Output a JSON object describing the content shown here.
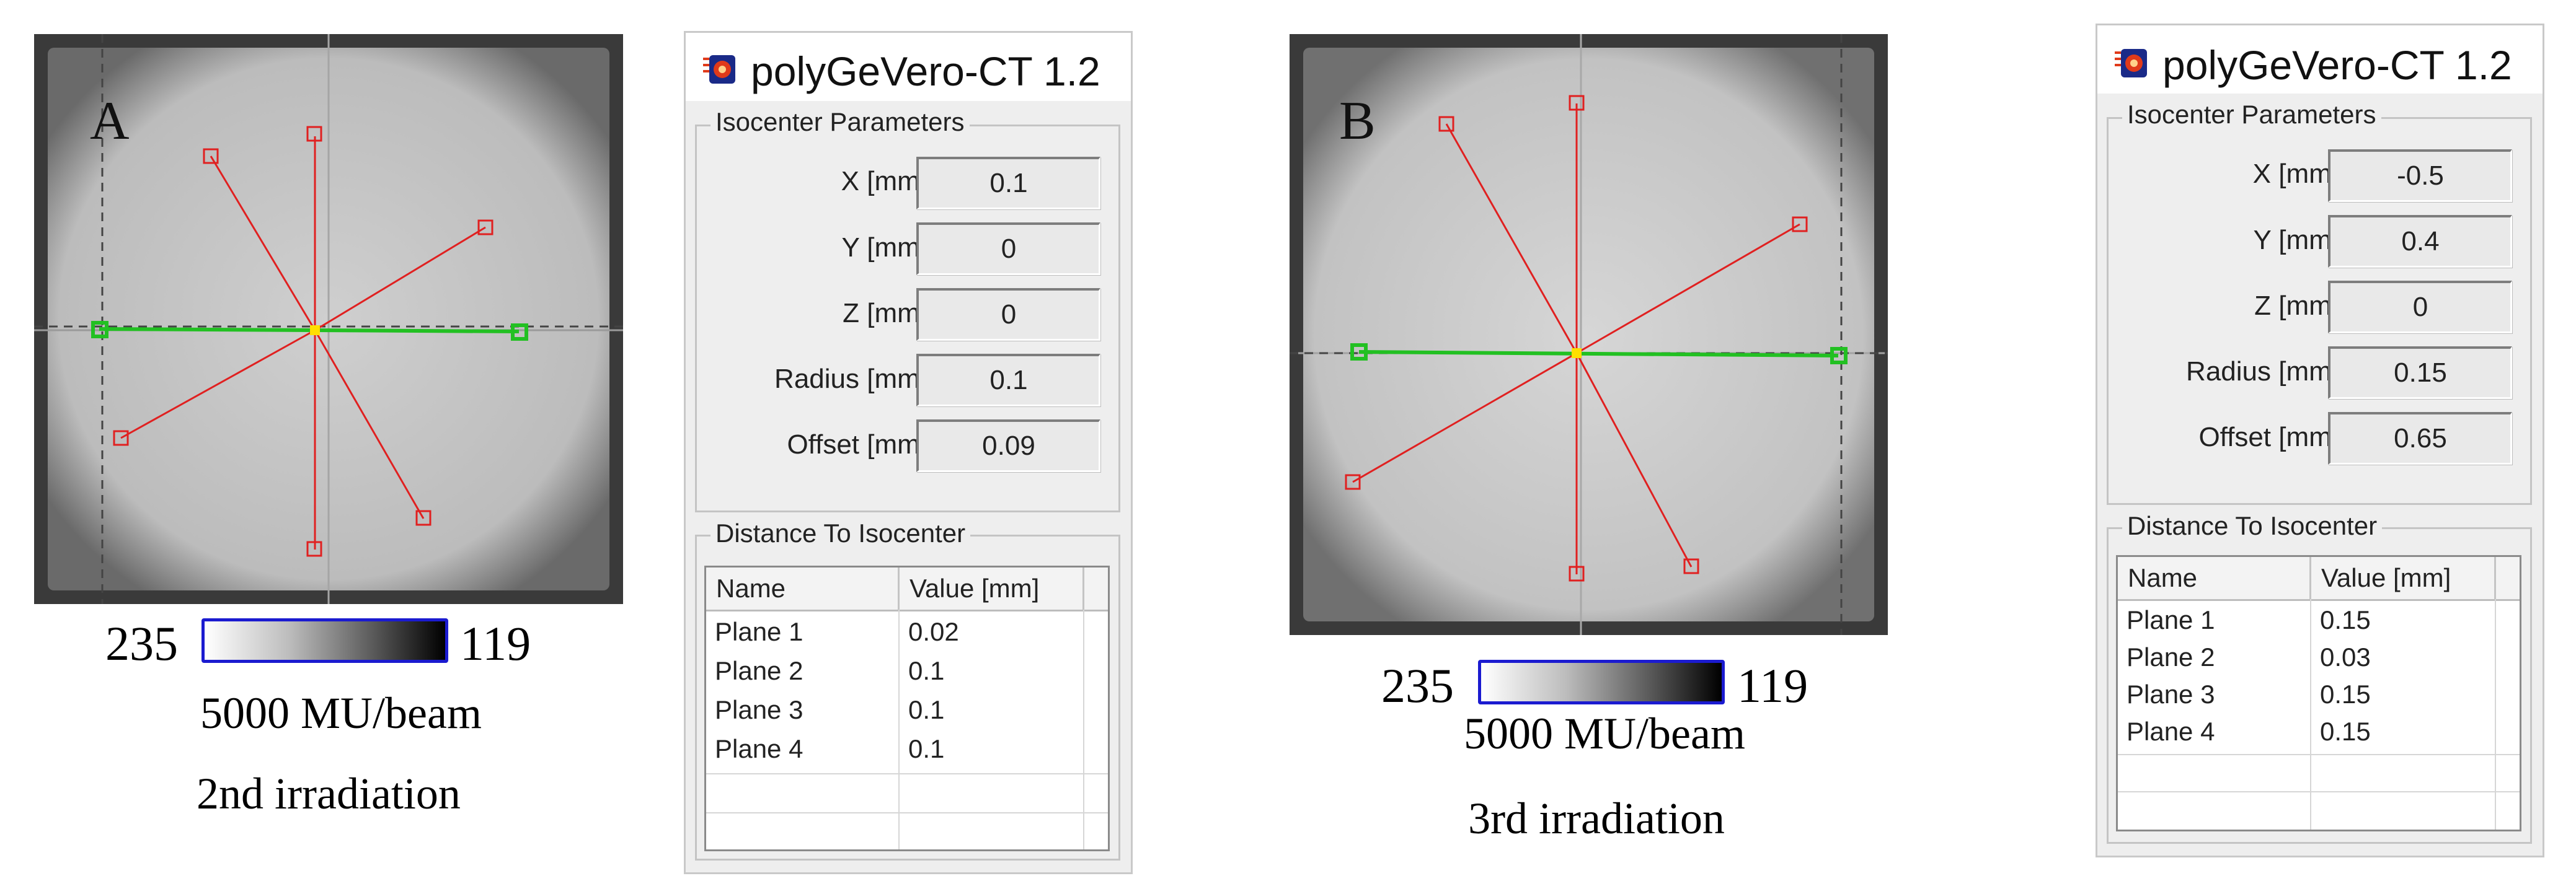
{
  "panelA": {
    "letter": "A",
    "scale": {
      "min": "235",
      "max": "119"
    },
    "caption_mu": "5000 MU/beam",
    "caption_irr": "2nd irradiation",
    "window": {
      "title": "polyGeVero-CT 1.2",
      "iso_group": "Isocenter Parameters",
      "params": [
        {
          "label": "X [mm]",
          "value": "0.1"
        },
        {
          "label": "Y [mm]",
          "value": "0"
        },
        {
          "label": "Z [mm]",
          "value": "0"
        },
        {
          "label": "Radius [mm]",
          "value": "0.1"
        },
        {
          "label": "Offset [mm]",
          "value": "0.09"
        }
      ],
      "dist_group": "Distance To Isocenter",
      "columns": [
        "Name",
        "Value [mm]"
      ],
      "rows": [
        {
          "name": "Plane 1",
          "value": "0.02"
        },
        {
          "name": "Plane 2",
          "value": "0.1"
        },
        {
          "name": "Plane 3",
          "value": "0.1"
        },
        {
          "name": "Plane 4",
          "value": "0.1"
        }
      ]
    }
  },
  "panelB": {
    "letter": "B",
    "scale": {
      "min": "235",
      "max": "119"
    },
    "caption_mu": "5000 MU/beam",
    "caption_irr": "3rd irradiation",
    "window": {
      "title": "polyGeVero-CT 1.2",
      "iso_group": "Isocenter Parameters",
      "params": [
        {
          "label": "X [mm]",
          "value": "-0.5"
        },
        {
          "label": "Y [mm]",
          "value": "0.4"
        },
        {
          "label": "Z [mm]",
          "value": "0"
        },
        {
          "label": "Radius [mm]",
          "value": "0.15"
        },
        {
          "label": "Offset [mm]",
          "value": "0.65"
        }
      ],
      "dist_group": "Distance To Isocenter",
      "columns": [
        "Name",
        "Value [mm]"
      ],
      "rows": [
        {
          "name": "Plane 1",
          "value": "0.15"
        },
        {
          "name": "Plane 2",
          "value": "0.03"
        },
        {
          "name": "Plane 3",
          "value": "0.15"
        },
        {
          "name": "Plane 4",
          "value": "0.15"
        }
      ]
    }
  },
  "colors": {
    "beam_lines": "#e02020",
    "axis_line": "#22c022",
    "isocenter": "#ffe000",
    "scale_border": "#1b1bd0"
  }
}
